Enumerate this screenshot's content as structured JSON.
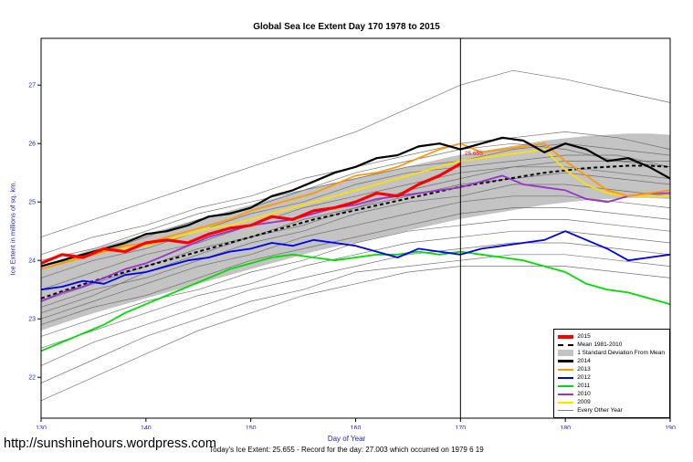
{
  "chart_data": {
    "type": "line",
    "title": "Global Sea Ice Extent Day 170 1978 to 2015",
    "xlabel": "Day of Year",
    "ylabel": "Ice Extent in millions of sq. km.",
    "xlim": [
      130,
      190
    ],
    "ylim": [
      21.3,
      27.8
    ],
    "xticks": [
      130,
      140,
      150,
      160,
      170,
      180,
      190
    ],
    "yticks": [
      22,
      23,
      24,
      25,
      26,
      27
    ],
    "marker_day": 170,
    "annotation": {
      "text": "25.655",
      "x": 170.4,
      "y": 25.8,
      "color": "#ff0000"
    },
    "x": [
      130,
      132,
      134,
      136,
      138,
      140,
      142,
      144,
      146,
      148,
      150,
      152,
      154,
      156,
      158,
      160,
      162,
      164,
      166,
      168,
      170,
      172,
      174,
      176,
      178,
      180,
      182,
      184,
      186,
      188,
      190
    ],
    "mean": {
      "label": "Mean 1981-2010",
      "color": "#000000",
      "values": [
        23.35,
        23.47,
        23.59,
        23.7,
        23.8,
        23.9,
        24.0,
        24.1,
        24.2,
        24.3,
        24.4,
        24.5,
        24.6,
        24.7,
        24.78,
        24.86,
        24.94,
        25.02,
        25.1,
        25.18,
        25.26,
        25.32,
        25.38,
        25.44,
        25.5,
        25.54,
        25.58,
        25.6,
        25.62,
        25.62,
        25.6
      ]
    },
    "band": {
      "label": "1 Standard Deviation From Mean",
      "sd": 0.55,
      "color": "#c3c3c3"
    },
    "series": [
      {
        "name": "2015",
        "color": "#ff0000",
        "width": 3.2,
        "values": [
          23.95,
          24.1,
          24.05,
          24.2,
          24.15,
          24.3,
          24.35,
          24.3,
          24.45,
          24.55,
          24.6,
          24.75,
          24.7,
          24.85,
          24.9,
          25.0,
          25.15,
          25.1,
          25.3,
          25.45,
          25.655,
          null,
          null,
          null,
          null,
          null,
          null,
          null,
          null,
          null,
          null
        ]
      },
      {
        "name": "2014",
        "color": "#000000",
        "width": 2.2,
        "values": [
          23.9,
          24.0,
          24.1,
          24.2,
          24.3,
          24.45,
          24.5,
          24.6,
          24.75,
          24.8,
          24.9,
          25.1,
          25.2,
          25.35,
          25.5,
          25.6,
          25.75,
          25.8,
          25.95,
          26.0,
          25.9,
          26.0,
          26.1,
          26.05,
          25.85,
          26.0,
          25.9,
          25.7,
          25.75,
          25.6,
          25.4
        ]
      },
      {
        "name": "2013",
        "color": "#ff9900",
        "width": 1.8,
        "values": [
          23.85,
          23.95,
          24.05,
          24.15,
          24.25,
          24.3,
          24.4,
          24.5,
          24.6,
          24.7,
          24.85,
          24.95,
          25.05,
          25.15,
          25.3,
          25.45,
          25.5,
          25.6,
          25.75,
          25.9,
          26.0,
          25.85,
          25.9,
          25.95,
          26.0,
          25.7,
          25.45,
          25.2,
          25.1,
          25.15,
          25.2
        ]
      },
      {
        "name": "2012",
        "color": "#0000ee",
        "width": 1.8,
        "values": [
          23.5,
          23.55,
          23.65,
          23.6,
          23.75,
          23.8,
          23.9,
          24.0,
          24.05,
          24.15,
          24.2,
          24.3,
          24.25,
          24.35,
          24.3,
          24.25,
          24.15,
          24.05,
          24.2,
          24.15,
          24.1,
          24.2,
          24.25,
          24.3,
          24.35,
          24.5,
          24.35,
          24.2,
          24.0,
          24.05,
          24.1
        ]
      },
      {
        "name": "2011",
        "color": "#00dd00",
        "width": 1.8,
        "values": [
          22.45,
          22.6,
          22.75,
          22.9,
          23.1,
          23.25,
          23.4,
          23.55,
          23.7,
          23.85,
          23.95,
          24.05,
          24.1,
          24.05,
          24.0,
          24.05,
          24.1,
          24.1,
          24.15,
          24.1,
          24.15,
          24.1,
          24.05,
          24.0,
          23.9,
          23.8,
          23.6,
          23.5,
          23.45,
          23.35,
          23.25
        ]
      },
      {
        "name": "2010",
        "color": "#9933cc",
        "width": 1.8,
        "values": [
          23.3,
          23.45,
          23.55,
          23.7,
          23.85,
          23.95,
          24.1,
          24.25,
          24.4,
          24.5,
          24.6,
          24.65,
          24.7,
          24.8,
          24.9,
          24.95,
          25.05,
          25.1,
          25.15,
          25.2,
          25.25,
          25.35,
          25.45,
          25.3,
          25.25,
          25.2,
          25.05,
          25.0,
          25.1,
          25.15,
          25.15
        ]
      },
      {
        "name": "2009",
        "color": "#ffdf00",
        "width": 1.8,
        "values": [
          23.9,
          24.0,
          24.05,
          24.15,
          24.2,
          24.25,
          24.35,
          24.45,
          24.55,
          24.6,
          24.7,
          24.8,
          24.9,
          25.0,
          25.1,
          25.2,
          25.3,
          25.4,
          25.5,
          25.6,
          25.7,
          25.75,
          25.8,
          25.85,
          25.9,
          25.55,
          25.3,
          25.15,
          25.1,
          25.1,
          25.1
        ]
      }
    ],
    "x_gray": [
      130,
      135,
      140,
      145,
      150,
      155,
      160,
      165,
      170,
      175,
      180,
      185,
      190
    ],
    "gray_series": {
      "label": "Every Other Year",
      "color": "#666666",
      "lines": [
        [
          24.4,
          24.7,
          25.0,
          25.3,
          25.6,
          25.9,
          26.2,
          26.6,
          27.0,
          27.25,
          27.1,
          26.9,
          26.7
        ],
        [
          24.1,
          24.4,
          24.6,
          24.9,
          25.1,
          25.4,
          25.6,
          25.8,
          26.0,
          26.1,
          26.2,
          26.1,
          25.9
        ],
        [
          23.9,
          24.1,
          24.4,
          24.7,
          24.9,
          25.2,
          25.4,
          25.6,
          25.7,
          25.9,
          26.0,
          25.9,
          25.8
        ],
        [
          23.7,
          24.0,
          24.2,
          24.5,
          24.8,
          25.0,
          25.3,
          25.5,
          25.6,
          25.7,
          25.8,
          25.8,
          25.6
        ],
        [
          23.5,
          23.8,
          24.1,
          24.3,
          24.6,
          24.9,
          25.1,
          25.3,
          25.5,
          25.6,
          25.6,
          25.5,
          25.4
        ],
        [
          23.3,
          23.6,
          23.9,
          24.2,
          24.4,
          24.7,
          24.9,
          25.1,
          25.3,
          25.4,
          25.5,
          25.4,
          25.3
        ],
        [
          23.2,
          23.5,
          23.7,
          24.0,
          24.3,
          24.5,
          24.8,
          25.0,
          25.1,
          25.3,
          25.3,
          25.2,
          25.1
        ],
        [
          23.0,
          23.3,
          23.6,
          23.9,
          24.1,
          24.4,
          24.6,
          24.8,
          25.0,
          25.1,
          25.1,
          25.0,
          24.9
        ],
        [
          22.9,
          23.2,
          23.4,
          23.7,
          24.0,
          24.2,
          24.4,
          24.6,
          24.8,
          24.9,
          24.9,
          24.8,
          24.7
        ],
        [
          22.7,
          23.0,
          23.3,
          23.5,
          23.8,
          24.0,
          24.3,
          24.5,
          24.6,
          24.7,
          24.7,
          24.6,
          24.5
        ],
        [
          22.5,
          22.8,
          23.1,
          23.4,
          23.6,
          23.9,
          24.1,
          24.3,
          24.4,
          24.5,
          24.5,
          24.4,
          24.3
        ],
        [
          22.2,
          22.6,
          22.9,
          23.2,
          23.5,
          23.7,
          23.9,
          24.1,
          24.2,
          24.3,
          24.3,
          24.2,
          24.1
        ],
        [
          21.9,
          22.3,
          22.7,
          23.0,
          23.3,
          23.5,
          23.8,
          23.9,
          24.0,
          24.1,
          24.1,
          24.0,
          23.9
        ],
        [
          21.6,
          22.0,
          22.4,
          22.8,
          23.1,
          23.4,
          23.6,
          23.8,
          23.9,
          23.9,
          23.9,
          23.8,
          23.7
        ],
        [
          24.0,
          24.2,
          24.5,
          24.8,
          25.0,
          25.2,
          25.5,
          25.7,
          25.9,
          26.0,
          25.9,
          25.7,
          25.6
        ],
        [
          23.1,
          23.4,
          23.8,
          24.1,
          24.4,
          24.6,
          24.9,
          25.2,
          25.4,
          25.6,
          25.7,
          25.7,
          25.7
        ]
      ]
    }
  },
  "legend": {
    "items": [
      {
        "label": "2015",
        "style": "line",
        "color": "#ff0000",
        "width": 4
      },
      {
        "label": "Mean 1981-2010",
        "style": "dashed",
        "color": "#000000",
        "width": 2
      },
      {
        "label": "1 Standard Deviation From Mean",
        "style": "fill",
        "color": "#c3c3c3",
        "width": 0
      },
      {
        "label": "2014",
        "style": "line",
        "color": "#000000",
        "width": 3
      },
      {
        "label": "2013",
        "style": "line",
        "color": "#ff9900",
        "width": 2
      },
      {
        "label": "2012",
        "style": "line",
        "color": "#0000ee",
        "width": 2
      },
      {
        "label": "2011",
        "style": "line",
        "color": "#00dd00",
        "width": 2
      },
      {
        "label": "2010",
        "style": "line",
        "color": "#9933cc",
        "width": 2
      },
      {
        "label": "2009",
        "style": "line",
        "color": "#ffdf00",
        "width": 2
      },
      {
        "label": "Every Other Year",
        "style": "line",
        "color": "#808080",
        "width": 1
      }
    ]
  },
  "footer": {
    "note": "Today's Ice Extent: 25.655  - Record for the day: 27.003 which occurred on 1979 6 19",
    "url": "http://sunshinehours.wordpress.com"
  },
  "colors": {
    "axis_text": "#1f1faf",
    "marker_line": "#000000",
    "plot_border": "#000000"
  }
}
